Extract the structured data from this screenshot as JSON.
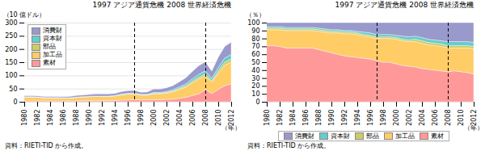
{
  "chart_data": [
    {
      "type": "area",
      "stacked": true,
      "title": "1997 アジア通貨危機  2008 世界経済危機",
      "ylabel": "（10 億ドル）",
      "xlabel": "（年）",
      "caption": "資料：RIETI-TID から作成。",
      "x": [
        1980,
        1981,
        1982,
        1983,
        1984,
        1985,
        1986,
        1987,
        1988,
        1989,
        1990,
        1991,
        1992,
        1993,
        1994,
        1995,
        1996,
        1997,
        1998,
        1999,
        2000,
        2001,
        2002,
        2003,
        2004,
        2005,
        2006,
        2007,
        2008,
        2009,
        2010,
        2011,
        2012
      ],
      "series": [
        {
          "name": "素材",
          "color": "#ff9999",
          "values": [
            3,
            3,
            3,
            3,
            3,
            3,
            3,
            3,
            3,
            4,
            4,
            4,
            4,
            4,
            5,
            6,
            7,
            8,
            7,
            7,
            8,
            8,
            9,
            10,
            13,
            17,
            24,
            30,
            47,
            31,
            47,
            61,
            68
          ]
        },
        {
          "name": "加工品",
          "color": "#ffcc66",
          "values": [
            15,
            15,
            14,
            12,
            12,
            12,
            11,
            11,
            13,
            14,
            15,
            16,
            16,
            16,
            17,
            20,
            22,
            22,
            18,
            18,
            22,
            22,
            24,
            28,
            34,
            39,
            48,
            56,
            51,
            43,
            61,
            78,
            82
          ]
        },
        {
          "name": "部品",
          "color": "#cccc66",
          "values": [
            0.5,
            0.5,
            0.5,
            0.5,
            0.5,
            0.5,
            0.5,
            0.5,
            0.5,
            0.5,
            0.5,
            0.5,
            0.5,
            0.5,
            0.5,
            1,
            1,
            1,
            1,
            1,
            2,
            2,
            2,
            3,
            4,
            5,
            6,
            7,
            7,
            6,
            9,
            11,
            12
          ]
        },
        {
          "name": "資本財",
          "color": "#66cccc",
          "values": [
            0.5,
            0.5,
            0.5,
            0.5,
            0.5,
            0.5,
            0.5,
            0.5,
            1,
            1,
            1,
            1,
            1,
            1,
            1,
            2,
            2,
            2,
            2,
            2,
            3,
            3,
            4,
            5,
            6,
            7,
            9,
            11,
            12,
            9,
            13,
            16,
            17
          ]
        },
        {
          "name": "消費財",
          "color": "#9999cc",
          "values": [
            4,
            4,
            4,
            4,
            4,
            4,
            4,
            5,
            6,
            6,
            7,
            8,
            8,
            8,
            8,
            9,
            10,
            10,
            8,
            9,
            13,
            13,
            14,
            15,
            19,
            23,
            28,
            33,
            34,
            27,
            38,
            44,
            47
          ]
        }
      ],
      "vlines": [
        1997,
        2008
      ],
      "xlim": [
        1980,
        2012
      ],
      "xticks": [
        1980,
        1982,
        1984,
        1986,
        1988,
        1990,
        1992,
        1994,
        1996,
        1998,
        2000,
        2002,
        2004,
        2006,
        2008,
        2010,
        2012
      ],
      "ylim": [
        0,
        300
      ],
      "yticks": [
        0,
        50,
        100,
        150,
        200,
        250,
        300
      ],
      "grid": true,
      "legend": "upper left"
    },
    {
      "type": "area",
      "stacked": true,
      "title": "1997 アジア通貨危機  2008 世界経済危機",
      "ylabel": "（％）",
      "xlabel": "（年）",
      "caption": "資料：RIETI-TID から作成。",
      "x": [
        1980,
        1981,
        1982,
        1983,
        1984,
        1985,
        1986,
        1987,
        1988,
        1989,
        1990,
        1991,
        1992,
        1993,
        1994,
        1995,
        1996,
        1997,
        1998,
        1999,
        2000,
        2001,
        2002,
        2003,
        2004,
        2005,
        2006,
        2007,
        2008,
        2009,
        2010,
        2011,
        2012
      ],
      "series": [
        {
          "name": "素材",
          "color": "#ff9999",
          "values": [
            71,
            71,
            70,
            68,
            68,
            68,
            68,
            68,
            66,
            64,
            62,
            60,
            58,
            57,
            56,
            55,
            54,
            52,
            50,
            50,
            48,
            46,
            45,
            44,
            42,
            41,
            40,
            39,
            38,
            39,
            38,
            37,
            35
          ]
        },
        {
          "name": "加工品",
          "color": "#ffcc66",
          "values": [
            20,
            20,
            21,
            22,
            22,
            22,
            22,
            22,
            23,
            24,
            25,
            27,
            28,
            29,
            29,
            28,
            28,
            28,
            30,
            30,
            31,
            31,
            31,
            32,
            32,
            31,
            31,
            31,
            30,
            29,
            30,
            31,
            32
          ]
        },
        {
          "name": "部品",
          "color": "#cccc66",
          "values": [
            2,
            2,
            2,
            2,
            2,
            2,
            2,
            2,
            2,
            2,
            2,
            2,
            2,
            2,
            2,
            2,
            2,
            2,
            2,
            2,
            2,
            2,
            2,
            3,
            3,
            3,
            3,
            3,
            3,
            3,
            3,
            3,
            3
          ]
        },
        {
          "name": "資本財",
          "color": "#66cccc",
          "values": [
            2,
            2,
            2,
            2,
            2,
            2,
            2,
            2,
            2,
            2,
            2,
            2,
            2,
            2,
            2,
            3,
            3,
            3,
            3,
            3,
            3,
            4,
            4,
            4,
            4,
            4,
            4,
            4,
            5,
            5,
            5,
            5,
            5
          ]
        },
        {
          "name": "消費財",
          "color": "#9999cc",
          "values": [
            5,
            5,
            5,
            6,
            6,
            6,
            6,
            6,
            7,
            8,
            9,
            9,
            10,
            10,
            11,
            12,
            13,
            15,
            15,
            15,
            16,
            17,
            18,
            17,
            19,
            21,
            22,
            23,
            24,
            24,
            24,
            24,
            25
          ]
        }
      ],
      "vlines": [
        1997,
        2008
      ],
      "xlim": [
        1980,
        2012
      ],
      "xticks": [
        1980,
        1982,
        1984,
        1986,
        1988,
        1990,
        1992,
        1994,
        1996,
        1998,
        2000,
        2002,
        2004,
        2006,
        2008,
        2010,
        2012
      ],
      "ylim": [
        0,
        100
      ],
      "yticks": [
        0,
        10,
        20,
        30,
        40,
        50,
        60,
        70,
        80,
        90,
        100
      ],
      "grid": true,
      "legend": "bottom"
    }
  ]
}
